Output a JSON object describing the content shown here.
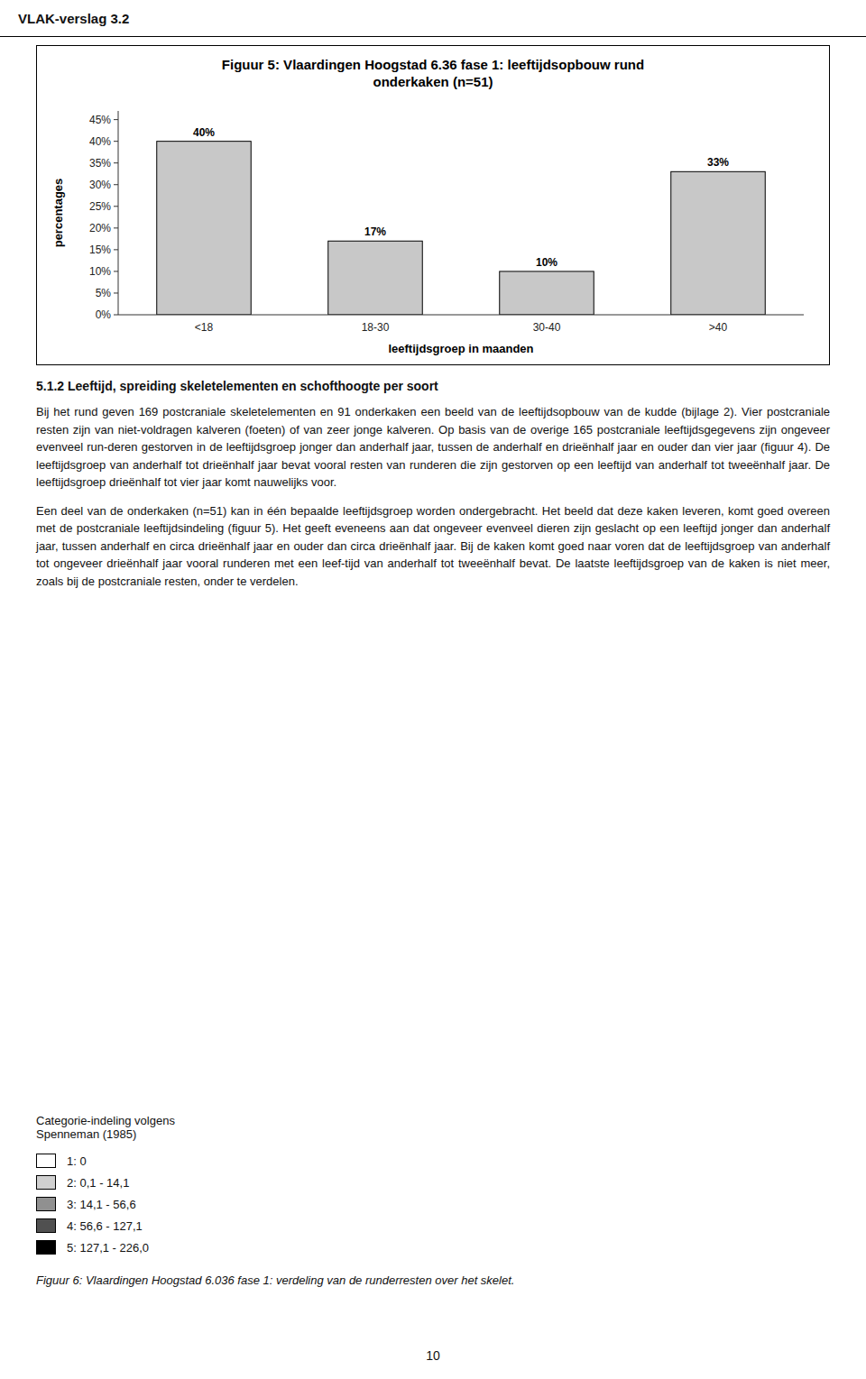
{
  "chart_data": {
    "type": "bar",
    "title": "Figuur 5: Vlaardingen Hoogstad 6.36 fase 1: leeftijdsopbouw rund\nonderkaken (n=51)",
    "categories": [
      "<18",
      "18-30",
      "30-40",
      ">40"
    ],
    "values": [
      40,
      17,
      10,
      33
    ],
    "value_labels": [
      "40%",
      "17%",
      "10%",
      "33%"
    ],
    "data_labels": true,
    "color": "#c8c8c8",
    "xlabel": "leeftijdsgroep in maanden",
    "ylabel": "percentages",
    "ylim": [
      0,
      47
    ],
    "yticks": [
      {
        "value": 0,
        "label": "0%"
      },
      {
        "value": 5,
        "label": "5%"
      },
      {
        "value": 10,
        "label": "10%"
      },
      {
        "value": 15,
        "label": "15%"
      },
      {
        "value": 20,
        "label": "20%"
      },
      {
        "value": 25,
        "label": "25%"
      },
      {
        "value": 30,
        "label": "30%"
      },
      {
        "value": 35,
        "label": "35%"
      },
      {
        "value": 40,
        "label": "40%"
      },
      {
        "value": 45,
        "label": "45%"
      }
    ],
    "grid": false
  },
  "header": "VLAK-verslag 3.2",
  "section_heading": "5.1.2 Leeftijd, spreiding skeletelementen en schofthoogte per soort",
  "paragraphs": [
    "Bij het rund geven 169 postcraniale skeletelementen en 91 onderkaken een beeld van de leeftijdsopbouw van de kudde (bijlage 2). Vier postcraniale resten zijn van niet-voldragen kalveren (foeten) of van zeer jonge kalveren. Op basis van de overige 165 postcraniale leeftijdsgegevens zijn ongeveer evenveel run-deren gestorven in de leeftijdsgroep jonger dan anderhalf jaar, tussen de anderhalf en drieënhalf jaar en ouder dan vier jaar (figuur 4). De leeftijdsgroep van anderhalf tot drieënhalf jaar bevat vooral resten van runderen die zijn gestorven op een leeftijd van anderhalf tot tweeënhalf jaar. De leeftijdsgroep drieënhalf tot vier jaar komt nauwelijks voor.",
    "Een deel van de onderkaken (n=51) kan in één bepaalde leeftijdsgroep worden ondergebracht. Het beeld dat deze kaken leveren, komt goed overeen met de postcraniale leeftijdsindeling (figuur 5). Het geeft eveneens aan dat ongeveer evenveel dieren zijn geslacht op een leeftijd jonger dan anderhalf jaar, tussen anderhalf en circa drieënhalf jaar en ouder dan circa drieënhalf jaar. Bij de kaken komt goed naar voren dat de leeftijdsgroep van anderhalf tot ongeveer drieënhalf jaar vooral runderen met een leef-tijd van anderhalf tot tweeënhalf bevat. De laatste leeftijdsgroep van de kaken is niet meer, zoals bij de postcraniale resten, onder te verdelen."
  ],
  "image_legend": {
    "title": "Categorie-indeling volgens\nSpenneman (1985)",
    "items": [
      {
        "label": "1: 0",
        "color": "#ffffff"
      },
      {
        "label": "2: 0,1 - 14,1",
        "color": "#d0d0d0"
      },
      {
        "label": "3: 14,1 - 56,6",
        "color": "#909090"
      },
      {
        "label": "4: 56,6 - 127,1",
        "color": "#505050"
      },
      {
        "label": "5: 127,1 - 226,0",
        "color": "#000000"
      }
    ]
  },
  "caption": "Figuur 6: Vlaardingen Hoogstad 6.036 fase 1: verdeling van de runderresten over het skelet.",
  "page_number": "10"
}
